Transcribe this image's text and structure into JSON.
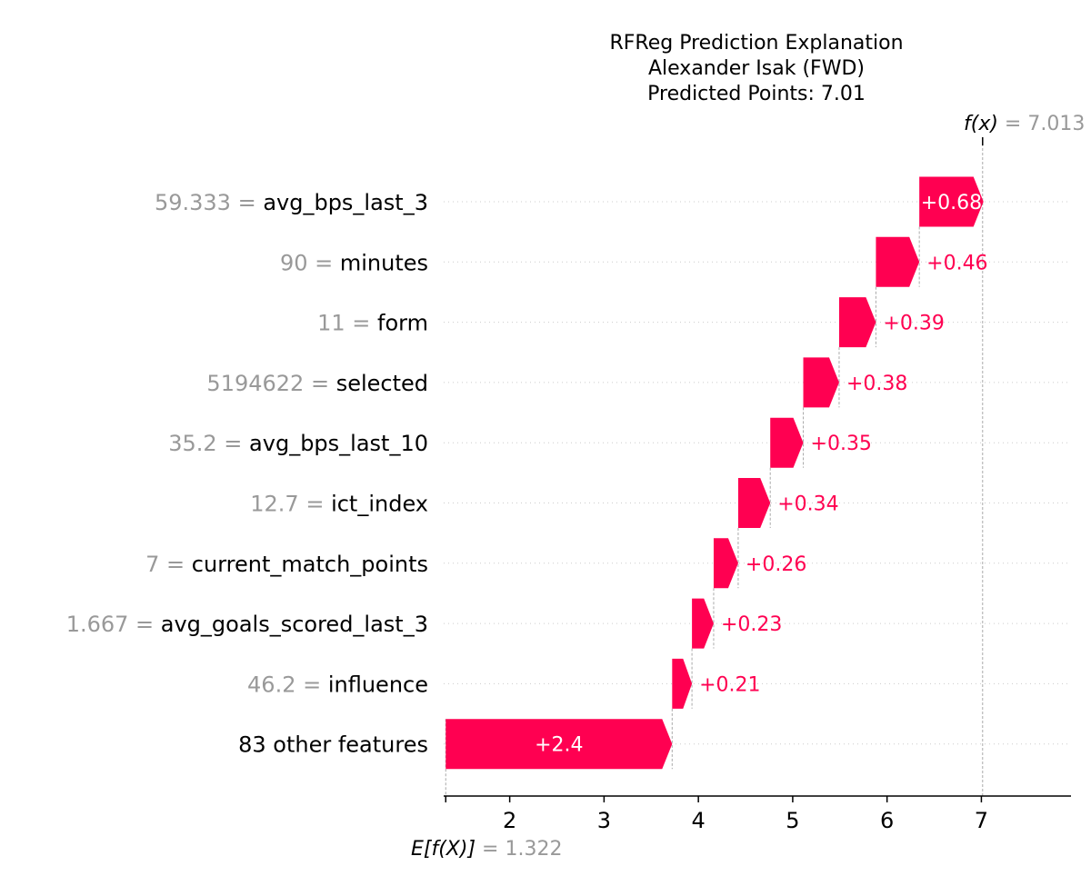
{
  "chart_data": {
    "type": "waterfall",
    "title_lines": [
      "RFReg Prediction Explanation",
      "Alexander Isak (FWD)",
      "Predicted Points: 7.01"
    ],
    "base_value": 1.322,
    "base_value_label": "1.322",
    "base_label_name": "E[f(X)]",
    "output_value": 7.013,
    "output_value_label": "7.013",
    "output_label_name": "f(x)",
    "xlim": [
      1.3,
      7.95
    ],
    "x_ticks": [
      2,
      3,
      4,
      5,
      6,
      7
    ],
    "features": [
      {
        "value": "59.333",
        "name": "avg_bps_last_3",
        "contribution": 0.68,
        "label": "+0.68"
      },
      {
        "value": "90",
        "name": "minutes",
        "contribution": 0.46,
        "label": "+0.46"
      },
      {
        "value": "11",
        "name": "form",
        "contribution": 0.39,
        "label": "+0.39"
      },
      {
        "value": "5194622",
        "name": "selected",
        "contribution": 0.38,
        "label": "+0.38"
      },
      {
        "value": "35.2",
        "name": "avg_bps_last_10",
        "contribution": 0.35,
        "label": "+0.35"
      },
      {
        "value": "12.7",
        "name": "ict_index",
        "contribution": 0.34,
        "label": "+0.34"
      },
      {
        "value": "7",
        "name": "current_match_points",
        "contribution": 0.26,
        "label": "+0.26"
      },
      {
        "value": "1.667",
        "name": "avg_goals_scored_last_3",
        "contribution": 0.23,
        "label": "+0.23"
      },
      {
        "value": "46.2",
        "name": "influence",
        "contribution": 0.21,
        "label": "+0.21"
      },
      {
        "value": "",
        "name": "83 other features",
        "contribution": 2.4,
        "label": "+2.4"
      }
    ],
    "colors": {
      "positive": "#ff0051",
      "gray_text": "#999999",
      "axis": "#000000",
      "grid": "#dddddd"
    }
  }
}
